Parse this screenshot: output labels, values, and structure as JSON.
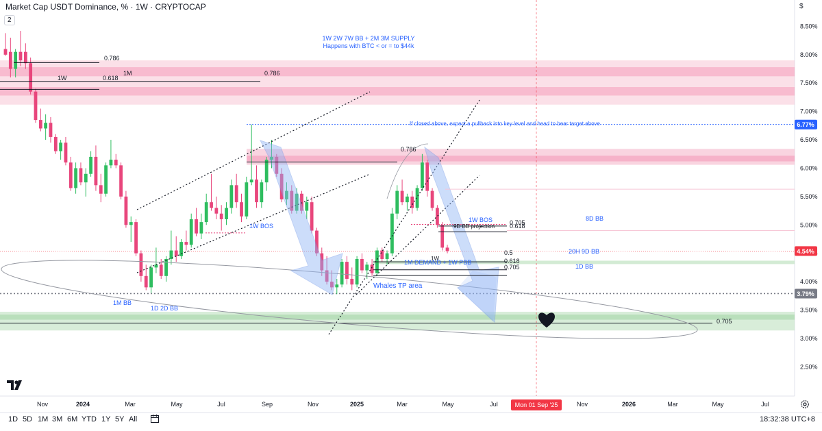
{
  "header": {
    "title": "Market Cap USDT Dominance, % · 1W · CRYPTOCAP",
    "indicator_count": "2"
  },
  "price_axis": {
    "ticks": [
      "8.50%",
      "8.00%",
      "7.50%",
      "7.00%",
      "6.50%",
      "6.00%",
      "5.50%",
      "5.00%",
      "4.50%",
      "4.00%",
      "3.50%",
      "3.00%",
      "2.50%"
    ],
    "currency_icon": "dollar-sign-icon",
    "badges": [
      {
        "label": "6.77%",
        "value": 6.77,
        "color": "#2962ff"
      },
      {
        "label": "4.54%",
        "value": 4.54,
        "color": "#f23645"
      },
      {
        "label": "3.79%",
        "value": 3.79,
        "color": "#787b86"
      }
    ]
  },
  "time_axis": {
    "ticks": [
      "Nov",
      "2024",
      "Mar",
      "May",
      "Jul",
      "Sep",
      "Nov",
      "2025",
      "Mar",
      "May",
      "Jul",
      "Nov",
      "2026",
      "Mar",
      "May",
      "Jul"
    ],
    "cursor_label": "Mon 01 Sep '25"
  },
  "timeframes": [
    "1D",
    "5D",
    "1M",
    "3M",
    "6M",
    "YTD",
    "1Y",
    "5Y",
    "All"
  ],
  "clock": "18:32:38 UTC+8",
  "annotations": {
    "supply_line1": "1W 2W 7W BB + 2M 3M SUPPLY",
    "supply_line2": "Happens with BTC < or = to $44k",
    "fib_top": "0.786",
    "fib_1m_label": "1M",
    "fib_1m_value": "0.786",
    "fib_1w_label": "1W",
    "fib_1w_value": "0.618",
    "pullback_note": "If closed above, expect a pullback into key level and head to bear target above",
    "fib_mid": "0.786",
    "bos_left": "1W BOS",
    "bos_right": "1W BOS",
    "fib_0705": "0.705",
    "bb_projection": "9D BB projection",
    "fib_0618": "0.618",
    "bb_8d": "8D BB",
    "fib_05": "0.5",
    "demand_1w": "1W",
    "demand": "1M DEMAND + 1W PBB",
    "fib_0618b": "0.618",
    "fib_0705b": "0.705",
    "bb_20h": "20H 9D BB",
    "bb_1d": "1D BB",
    "whales": "Whales TP area",
    "bb_1m": "1M BB",
    "bb_1d2d": "1D 2D BB",
    "fib_bottom": "0.705",
    "target_icon": "heart-icon"
  },
  "chart_data": {
    "type": "candlestick",
    "symbol": "Market Cap USDT Dominance, %",
    "interval": "1W",
    "exchange": "CRYPTOCAP",
    "y_range": [
      2.25,
      8.65
    ],
    "y_ticks": [
      8.5,
      8.0,
      7.5,
      7.0,
      6.5,
      6.0,
      5.5,
      5.0,
      4.5,
      4.0,
      3.5,
      3.0,
      2.5
    ],
    "last_price": 4.54,
    "x_start_month": "2023-10",
    "x_end_month": "2026-08",
    "candles": [
      {
        "o": 8.1,
        "h": 8.38,
        "l": 7.98,
        "c": 8.0
      },
      {
        "o": 8.05,
        "h": 8.3,
        "l": 7.6,
        "c": 7.75
      },
      {
        "o": 7.75,
        "h": 8.1,
        "l": 7.6,
        "c": 8.05
      },
      {
        "o": 8.05,
        "h": 8.42,
        "l": 7.8,
        "c": 7.9
      },
      {
        "o": 8.05,
        "h": 8.2,
        "l": 7.75,
        "c": 7.85
      },
      {
        "o": 7.85,
        "h": 7.95,
        "l": 7.3,
        "c": 7.35
      },
      {
        "o": 7.35,
        "h": 7.4,
        "l": 6.8,
        "c": 6.85
      },
      {
        "o": 6.85,
        "h": 7.05,
        "l": 6.65,
        "c": 6.7
      },
      {
        "o": 6.7,
        "h": 6.95,
        "l": 6.5,
        "c": 6.8
      },
      {
        "o": 6.8,
        "h": 6.9,
        "l": 6.45,
        "c": 6.55
      },
      {
        "o": 6.55,
        "h": 6.6,
        "l": 6.25,
        "c": 6.3
      },
      {
        "o": 6.3,
        "h": 6.5,
        "l": 6.15,
        "c": 6.45
      },
      {
        "o": 6.45,
        "h": 6.55,
        "l": 6.05,
        "c": 6.1
      },
      {
        "o": 6.1,
        "h": 6.2,
        "l": 5.6,
        "c": 5.65
      },
      {
        "o": 5.65,
        "h": 6.1,
        "l": 5.55,
        "c": 6.0
      },
      {
        "o": 6.0,
        "h": 6.1,
        "l": 5.7,
        "c": 5.75
      },
      {
        "o": 5.75,
        "h": 6.0,
        "l": 5.5,
        "c": 5.9
      },
      {
        "o": 5.9,
        "h": 6.3,
        "l": 5.85,
        "c": 6.2
      },
      {
        "o": 6.2,
        "h": 6.4,
        "l": 5.6,
        "c": 5.7
      },
      {
        "o": 5.7,
        "h": 5.9,
        "l": 5.4,
        "c": 5.55
      },
      {
        "o": 5.55,
        "h": 6.1,
        "l": 5.5,
        "c": 6.05
      },
      {
        "o": 6.05,
        "h": 6.5,
        "l": 6.0,
        "c": 6.15
      },
      {
        "o": 6.15,
        "h": 6.25,
        "l": 6.0,
        "c": 6.05
      },
      {
        "o": 6.05,
        "h": 6.1,
        "l": 5.45,
        "c": 5.5
      },
      {
        "o": 5.5,
        "h": 5.6,
        "l": 4.95,
        "c": 5.0
      },
      {
        "o": 5.0,
        "h": 5.15,
        "l": 4.7,
        "c": 5.05
      },
      {
        "o": 5.05,
        "h": 5.1,
        "l": 4.45,
        "c": 4.5
      },
      {
        "o": 4.5,
        "h": 4.55,
        "l": 4.0,
        "c": 4.1
      },
      {
        "o": 4.1,
        "h": 4.3,
        "l": 3.85,
        "c": 3.9
      },
      {
        "o": 3.9,
        "h": 4.3,
        "l": 3.8,
        "c": 4.25
      },
      {
        "o": 4.25,
        "h": 4.6,
        "l": 4.15,
        "c": 4.3
      },
      {
        "o": 4.3,
        "h": 4.4,
        "l": 4.05,
        "c": 4.1
      },
      {
        "o": 4.1,
        "h": 4.45,
        "l": 4.0,
        "c": 4.4
      },
      {
        "o": 4.4,
        "h": 4.9,
        "l": 4.3,
        "c": 4.55
      },
      {
        "o": 4.55,
        "h": 4.8,
        "l": 4.35,
        "c": 4.45
      },
      {
        "o": 4.45,
        "h": 4.75,
        "l": 4.4,
        "c": 4.7
      },
      {
        "o": 4.7,
        "h": 4.9,
        "l": 4.55,
        "c": 4.65
      },
      {
        "o": 4.65,
        "h": 5.2,
        "l": 4.6,
        "c": 5.1
      },
      {
        "o": 5.1,
        "h": 5.3,
        "l": 4.8,
        "c": 4.85
      },
      {
        "o": 4.85,
        "h": 5.2,
        "l": 4.75,
        "c": 5.05
      },
      {
        "o": 5.05,
        "h": 5.55,
        "l": 5.0,
        "c": 5.4
      },
      {
        "o": 5.4,
        "h": 5.9,
        "l": 5.25,
        "c": 5.3
      },
      {
        "o": 5.3,
        "h": 5.5,
        "l": 5.1,
        "c": 5.2
      },
      {
        "o": 5.2,
        "h": 5.35,
        "l": 4.9,
        "c": 5.1
      },
      {
        "o": 5.1,
        "h": 5.4,
        "l": 5.0,
        "c": 5.3
      },
      {
        "o": 5.3,
        "h": 5.8,
        "l": 5.2,
        "c": 5.7
      },
      {
        "o": 5.7,
        "h": 5.9,
        "l": 5.3,
        "c": 5.4
      },
      {
        "o": 5.4,
        "h": 5.55,
        "l": 5.05,
        "c": 5.15
      },
      {
        "o": 5.15,
        "h": 5.85,
        "l": 5.1,
        "c": 5.75
      },
      {
        "o": 5.75,
        "h": 6.77,
        "l": 5.7,
        "c": 5.8
      },
      {
        "o": 5.8,
        "h": 6.05,
        "l": 5.3,
        "c": 5.4
      },
      {
        "o": 5.4,
        "h": 5.8,
        "l": 5.3,
        "c": 5.75
      },
      {
        "o": 5.75,
        "h": 6.2,
        "l": 5.6,
        "c": 6.15
      },
      {
        "o": 6.15,
        "h": 6.5,
        "l": 6.0,
        "c": 6.2
      },
      {
        "o": 6.2,
        "h": 6.25,
        "l": 5.85,
        "c": 5.9
      },
      {
        "o": 5.9,
        "h": 6.0,
        "l": 5.4,
        "c": 5.45
      },
      {
        "o": 5.45,
        "h": 5.75,
        "l": 5.35,
        "c": 5.6
      },
      {
        "o": 5.6,
        "h": 5.7,
        "l": 5.2,
        "c": 5.25
      },
      {
        "o": 5.25,
        "h": 5.65,
        "l": 5.2,
        "c": 5.55
      },
      {
        "o": 5.55,
        "h": 5.6,
        "l": 5.2,
        "c": 5.25
      },
      {
        "o": 5.25,
        "h": 5.5,
        "l": 5.1,
        "c": 5.4
      },
      {
        "o": 5.4,
        "h": 5.5,
        "l": 4.85,
        "c": 4.9
      },
      {
        "o": 4.9,
        "h": 4.95,
        "l": 4.45,
        "c": 4.5
      },
      {
        "o": 4.5,
        "h": 4.6,
        "l": 4.1,
        "c": 4.2
      },
      {
        "o": 4.2,
        "h": 4.45,
        "l": 3.95,
        "c": 4.0
      },
      {
        "o": 4.0,
        "h": 4.2,
        "l": 3.85,
        "c": 3.9
      },
      {
        "o": 3.9,
        "h": 4.05,
        "l": 3.78,
        "c": 3.95
      },
      {
        "o": 3.95,
        "h": 4.4,
        "l": 3.9,
        "c": 4.35
      },
      {
        "o": 4.35,
        "h": 4.45,
        "l": 3.95,
        "c": 4.05
      },
      {
        "o": 4.05,
        "h": 4.25,
        "l": 3.85,
        "c": 3.95
      },
      {
        "o": 3.95,
        "h": 4.45,
        "l": 3.9,
        "c": 4.4
      },
      {
        "o": 4.4,
        "h": 4.5,
        "l": 4.15,
        "c": 4.2
      },
      {
        "o": 4.2,
        "h": 4.35,
        "l": 4.05,
        "c": 4.3
      },
      {
        "o": 4.3,
        "h": 4.4,
        "l": 4.1,
        "c": 4.15
      },
      {
        "o": 4.15,
        "h": 4.6,
        "l": 4.1,
        "c": 4.55
      },
      {
        "o": 4.55,
        "h": 4.6,
        "l": 4.35,
        "c": 4.4
      },
      {
        "o": 4.4,
        "h": 4.55,
        "l": 4.3,
        "c": 4.5
      },
      {
        "o": 4.5,
        "h": 5.3,
        "l": 4.45,
        "c": 5.2
      },
      {
        "o": 5.2,
        "h": 5.7,
        "l": 5.1,
        "c": 5.6
      },
      {
        "o": 5.6,
        "h": 5.8,
        "l": 5.35,
        "c": 5.4
      },
      {
        "o": 5.4,
        "h": 5.55,
        "l": 5.25,
        "c": 5.5
      },
      {
        "o": 5.5,
        "h": 5.6,
        "l": 5.2,
        "c": 5.3
      },
      {
        "o": 5.3,
        "h": 5.7,
        "l": 5.25,
        "c": 5.65
      },
      {
        "o": 5.65,
        "h": 6.25,
        "l": 5.6,
        "c": 6.1
      },
      {
        "o": 6.1,
        "h": 6.15,
        "l": 5.5,
        "c": 5.6
      },
      {
        "o": 5.6,
        "h": 5.65,
        "l": 5.25,
        "c": 5.3
      },
      {
        "o": 5.3,
        "h": 5.35,
        "l": 4.95,
        "c": 5.0
      },
      {
        "o": 5.0,
        "h": 5.05,
        "l": 4.55,
        "c": 4.6
      },
      {
        "o": 4.6,
        "h": 4.65,
        "l": 4.5,
        "c": 4.54
      }
    ]
  }
}
